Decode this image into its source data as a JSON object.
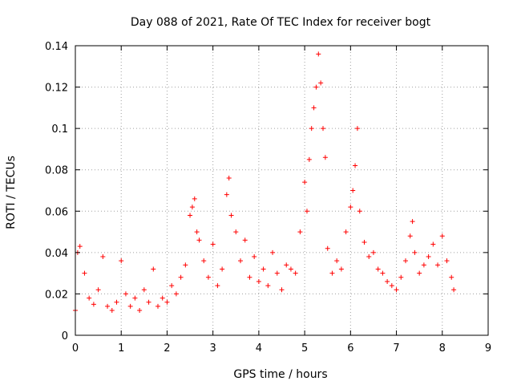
{
  "chart_data": {
    "type": "scatter",
    "title": "Day 088 of 2021, Rate Of TEC Index for receiver bogt",
    "xlabel": "GPS time / hours",
    "ylabel": "ROTI / TECUs",
    "xlim": [
      0,
      9
    ],
    "ylim": [
      0,
      0.14
    ],
    "x_ticks": [
      0,
      1,
      2,
      3,
      4,
      5,
      6,
      7,
      8,
      9
    ],
    "y_ticks": [
      0,
      0.02,
      0.04,
      0.06,
      0.08,
      0.1,
      0.12,
      0.14
    ],
    "x_tick_labels": [
      "0",
      "1",
      "2",
      "3",
      "4",
      "5",
      "6",
      "7",
      "8",
      "9"
    ],
    "y_tick_labels": [
      "0",
      "0.02",
      "0.04",
      "0.06",
      "0.08",
      "0.1",
      "0.12",
      "0.14"
    ],
    "grid": true,
    "marker": "+",
    "series": [
      {
        "name": "ROTI",
        "color": "#ff0000",
        "x": [
          0.0,
          0.05,
          0.1,
          0.2,
          0.3,
          0.4,
          0.5,
          0.6,
          0.7,
          0.8,
          0.9,
          1.0,
          1.1,
          1.2,
          1.3,
          1.4,
          1.5,
          1.6,
          1.7,
          1.8,
          1.9,
          2.0,
          2.1,
          2.2,
          2.3,
          2.4,
          2.5,
          2.55,
          2.6,
          2.65,
          2.7,
          2.8,
          2.9,
          3.0,
          3.1,
          3.2,
          3.3,
          3.35,
          3.4,
          3.5,
          3.6,
          3.7,
          3.8,
          3.9,
          4.0,
          4.1,
          4.2,
          4.3,
          4.4,
          4.5,
          4.6,
          4.7,
          4.8,
          4.9,
          5.0,
          5.05,
          5.1,
          5.15,
          5.2,
          5.25,
          5.3,
          5.35,
          5.4,
          5.45,
          5.5,
          5.6,
          5.7,
          5.8,
          5.9,
          6.0,
          6.05,
          6.1,
          6.15,
          6.2,
          6.3,
          6.4,
          6.5,
          6.6,
          6.7,
          6.8,
          6.9,
          7.0,
          7.1,
          7.2,
          7.3,
          7.35,
          7.4,
          7.5,
          7.6,
          7.7,
          7.8,
          7.9,
          8.0,
          8.1,
          8.2,
          8.25
        ],
        "y": [
          0.012,
          0.04,
          0.043,
          0.03,
          0.018,
          0.015,
          0.022,
          0.038,
          0.014,
          0.012,
          0.016,
          0.036,
          0.02,
          0.014,
          0.018,
          0.012,
          0.022,
          0.016,
          0.032,
          0.014,
          0.018,
          0.016,
          0.024,
          0.02,
          0.028,
          0.034,
          0.058,
          0.062,
          0.066,
          0.05,
          0.046,
          0.036,
          0.028,
          0.044,
          0.024,
          0.032,
          0.068,
          0.076,
          0.058,
          0.05,
          0.036,
          0.046,
          0.028,
          0.038,
          0.026,
          0.032,
          0.024,
          0.04,
          0.03,
          0.022,
          0.034,
          0.032,
          0.03,
          0.05,
          0.074,
          0.06,
          0.085,
          0.1,
          0.11,
          0.12,
          0.136,
          0.122,
          0.1,
          0.086,
          0.042,
          0.03,
          0.036,
          0.032,
          0.05,
          0.062,
          0.07,
          0.082,
          0.1,
          0.06,
          0.045,
          0.038,
          0.04,
          0.032,
          0.03,
          0.026,
          0.024,
          0.022,
          0.028,
          0.036,
          0.048,
          0.055,
          0.04,
          0.03,
          0.034,
          0.038,
          0.044,
          0.034,
          0.048,
          0.036,
          0.028,
          0.022
        ]
      }
    ]
  }
}
